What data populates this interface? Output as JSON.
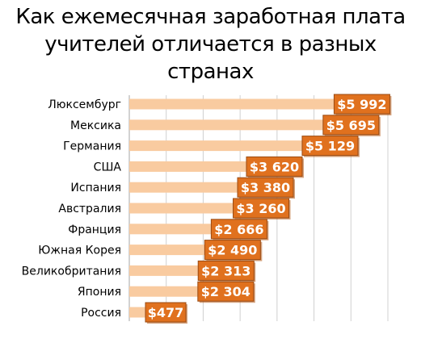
{
  "chart_data": {
    "type": "bar",
    "orientation": "horizontal",
    "title": "Как ежемесячная заработная плата\nучителей отличается в разных\nстранах",
    "categories": [
      "Люксембург",
      "Мексика",
      "Германия",
      "США",
      "Испания",
      "Австралия",
      "Франция",
      "Южная Корея",
      "Великобритания",
      "Япония",
      "Россия"
    ],
    "values": [
      5992,
      5695,
      5129,
      3620,
      3380,
      3260,
      2666,
      2490,
      2313,
      2304,
      477
    ],
    "value_labels": [
      "$5 992",
      "$5 695",
      "$5 129",
      "$3 620",
      "$3 380",
      "$3 260",
      "$2 666",
      "$2 490",
      "$2 313",
      "$2 304",
      "$477"
    ],
    "xlim": [
      0,
      7000
    ],
    "grid": true,
    "legend": "none",
    "colors": {
      "bar": "#f9cba0",
      "label_box": "#e0711e",
      "label_border": "#9a4a12",
      "label_text": "#ffffff",
      "grid": "#d0d0d0"
    }
  }
}
